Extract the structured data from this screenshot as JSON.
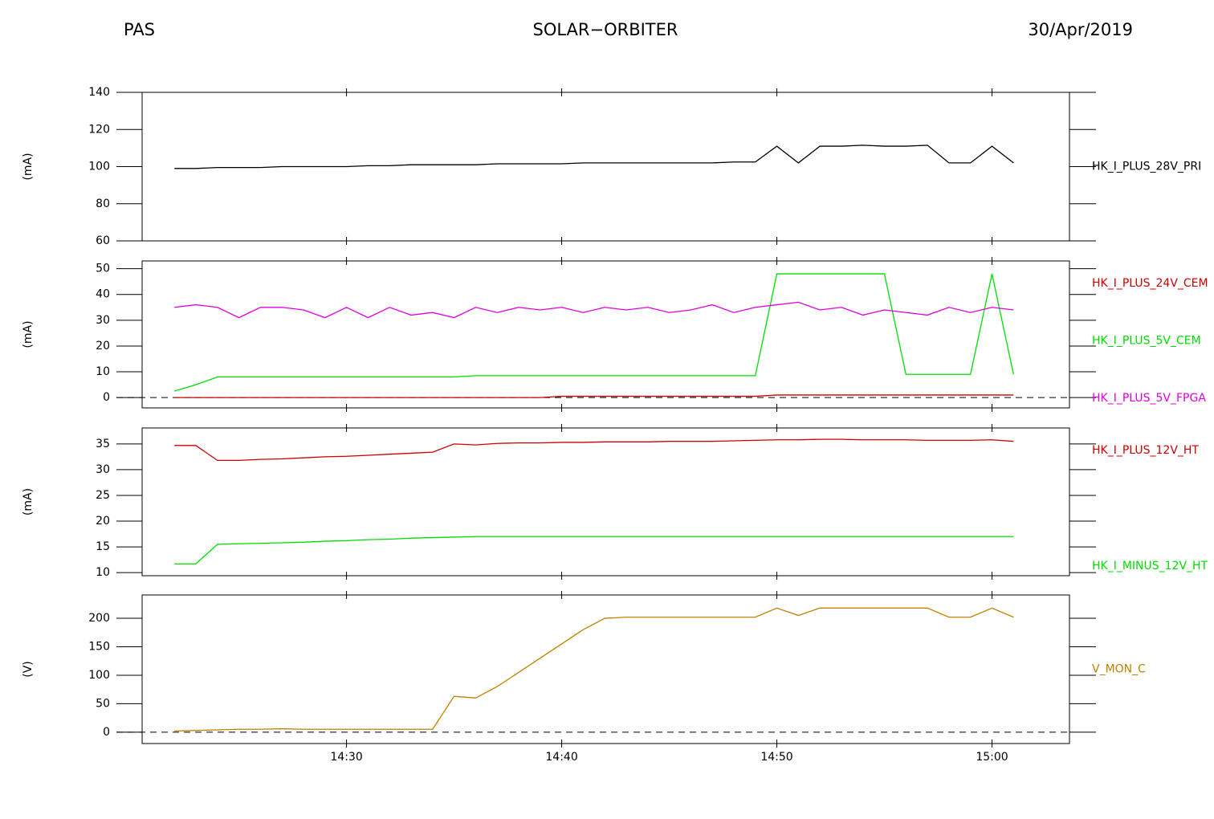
{
  "header": {
    "left": "PAS",
    "center": "SOLAR−ORBITER",
    "right": "30/Apr/2019"
  },
  "chart_data": [
    {
      "type": "line",
      "ylabel": "(mA)",
      "xlim": [
        "14:20:30",
        "15:03:36"
      ],
      "ylim": [
        60,
        140
      ],
      "yticks": [
        60,
        80,
        100,
        120,
        140
      ],
      "x": [
        "14:22",
        "14:23",
        "14:24",
        "14:25",
        "14:26",
        "14:27",
        "14:28",
        "14:29",
        "14:30",
        "14:31",
        "14:32",
        "14:33",
        "14:34",
        "14:35",
        "14:36",
        "14:37",
        "14:38",
        "14:39",
        "14:40",
        "14:41",
        "14:42",
        "14:43",
        "14:44",
        "14:45",
        "14:46",
        "14:47",
        "14:48",
        "14:49",
        "14:50",
        "14:51",
        "14:52",
        "14:53",
        "14:54",
        "14:55",
        "14:56",
        "14:57",
        "14:58",
        "14:59",
        "15:00",
        "15:01"
      ],
      "series": [
        {
          "name": "HK_I_PLUS_28V_PRI",
          "color": "#000000",
          "values": [
            99,
            99,
            99.5,
            99.5,
            99.5,
            100,
            100,
            100,
            100,
            100.5,
            100.5,
            101,
            101,
            101,
            101,
            101.5,
            101.5,
            101.5,
            101.5,
            102,
            102,
            102,
            102,
            102,
            102,
            102,
            102.5,
            102.5,
            111,
            102,
            111,
            111,
            111.5,
            111,
            111,
            111.5,
            102,
            102,
            111,
            102
          ]
        }
      ]
    },
    {
      "type": "line",
      "ylabel": "(mA)",
      "xlim": [
        "14:20:30",
        "15:03:36"
      ],
      "ylim": [
        -4,
        53
      ],
      "yticks": [
        0,
        10,
        20,
        30,
        40,
        50
      ],
      "zero_line": true,
      "x": [
        "14:22",
        "14:23",
        "14:24",
        "14:25",
        "14:26",
        "14:27",
        "14:28",
        "14:29",
        "14:30",
        "14:31",
        "14:32",
        "14:33",
        "14:34",
        "14:35",
        "14:36",
        "14:37",
        "14:38",
        "14:39",
        "14:40",
        "14:41",
        "14:42",
        "14:43",
        "14:44",
        "14:45",
        "14:46",
        "14:47",
        "14:48",
        "14:49",
        "14:50",
        "14:51",
        "14:52",
        "14:53",
        "14:54",
        "14:55",
        "14:56",
        "14:57",
        "14:58",
        "14:59",
        "15:00",
        "15:01"
      ],
      "series": [
        {
          "name": "HK_I_PLUS_24V_CEM",
          "color": "#cc0000",
          "values": [
            0,
            0,
            0,
            0,
            0,
            0,
            0,
            0,
            0,
            0,
            0,
            0,
            0,
            0,
            0,
            0,
            0,
            0,
            0.5,
            0.5,
            0.5,
            0.5,
            0.5,
            0.5,
            0.5,
            0.5,
            0.5,
            0.5,
            1,
            1,
            1,
            1,
            1,
            1,
            1,
            1,
            1,
            1,
            1,
            1
          ]
        },
        {
          "name": "HK_I_PLUS_5V_CEM",
          "color": "#00dd00",
          "values": [
            2.5,
            5,
            8,
            8,
            8,
            8,
            8,
            8,
            8,
            8,
            8,
            8,
            8,
            8,
            8.5,
            8.5,
            8.5,
            8.5,
            8.5,
            8.5,
            8.5,
            8.5,
            8.5,
            8.5,
            8.5,
            8.5,
            8.5,
            8.5,
            48,
            48,
            48,
            48,
            48,
            48,
            9,
            9,
            9,
            9,
            48,
            9
          ]
        },
        {
          "name": "HK_I_PLUS_5V_FPGA",
          "color": "#dd00dd",
          "values": [
            35,
            36,
            35,
            31,
            35,
            35,
            34,
            31,
            35,
            31,
            35,
            32,
            33,
            31,
            35,
            33,
            35,
            34,
            35,
            33,
            35,
            34,
            35,
            33,
            34,
            36,
            33,
            35,
            36,
            37,
            34,
            35,
            32,
            34,
            33,
            32,
            35,
            33,
            35,
            34
          ]
        }
      ]
    },
    {
      "type": "line",
      "ylabel": "(mA)",
      "xlim": [
        "14:20:30",
        "15:03:36"
      ],
      "ylim": [
        9.4,
        38.1
      ],
      "yticks": [
        10,
        15,
        20,
        25,
        30,
        35
      ],
      "x": [
        "14:22",
        "14:23",
        "14:24",
        "14:25",
        "14:26",
        "14:27",
        "14:28",
        "14:29",
        "14:30",
        "14:31",
        "14:32",
        "14:33",
        "14:34",
        "14:35",
        "14:36",
        "14:37",
        "14:38",
        "14:39",
        "14:40",
        "14:41",
        "14:42",
        "14:43",
        "14:44",
        "14:45",
        "14:46",
        "14:47",
        "14:48",
        "14:49",
        "14:50",
        "14:51",
        "14:52",
        "14:53",
        "14:54",
        "14:55",
        "14:56",
        "14:57",
        "14:58",
        "14:59",
        "15:00",
        "15:01"
      ],
      "series": [
        {
          "name": "HK_I_PLUS_12V_HT",
          "color": "#cc0000",
          "values": [
            34.7,
            34.7,
            31.8,
            31.8,
            32,
            32.1,
            32.3,
            32.5,
            32.6,
            32.8,
            33,
            33.2,
            33.4,
            35,
            34.8,
            35.1,
            35.2,
            35.2,
            35.3,
            35.3,
            35.4,
            35.4,
            35.4,
            35.5,
            35.5,
            35.5,
            35.6,
            35.7,
            35.8,
            35.8,
            35.9,
            35.9,
            35.8,
            35.8,
            35.8,
            35.7,
            35.7,
            35.7,
            35.8,
            35.5
          ]
        },
        {
          "name": "HK_I_MINUS_12V_HT",
          "color": "#00dd00",
          "values": [
            11.7,
            11.7,
            15.5,
            15.6,
            15.7,
            15.8,
            15.9,
            16.1,
            16.2,
            16.4,
            16.5,
            16.7,
            16.8,
            16.9,
            17,
            17,
            17,
            17,
            17,
            17,
            17,
            17,
            17,
            17,
            17,
            17,
            17,
            17,
            17,
            17,
            17,
            17,
            17,
            17,
            17,
            17,
            17,
            17,
            17,
            17
          ]
        }
      ]
    },
    {
      "type": "line",
      "ylabel": "(V)",
      "xlim": [
        "14:20:30",
        "15:03:36"
      ],
      "ylim": [
        -20,
        241
      ],
      "yticks": [
        0,
        50,
        100,
        150,
        200
      ],
      "zero_line": true,
      "xticks": [
        "14:30",
        "14:40",
        "14:50",
        "15:00"
      ],
      "x": [
        "14:22",
        "14:23",
        "14:24",
        "14:25",
        "14:26",
        "14:27",
        "14:28",
        "14:29",
        "14:30",
        "14:31",
        "14:32",
        "14:33",
        "14:34",
        "14:35",
        "14:36",
        "14:37",
        "14:38",
        "14:39",
        "14:40",
        "14:41",
        "14:42",
        "14:43",
        "14:44",
        "14:45",
        "14:46",
        "14:47",
        "14:48",
        "14:49",
        "14:50",
        "14:51",
        "14:52",
        "14:53",
        "14:54",
        "14:55",
        "14:56",
        "14:57",
        "14:58",
        "14:59",
        "15:00",
        "15:01"
      ],
      "series": [
        {
          "name": "V_MON_C",
          "color": "#c08000",
          "values": [
            2,
            3,
            4,
            5,
            5,
            6,
            5,
            5,
            5,
            5,
            5,
            5,
            5,
            63,
            60,
            80,
            105,
            130,
            155,
            180,
            200,
            202,
            202,
            202,
            202,
            202,
            202,
            202,
            218,
            205,
            218,
            218,
            218,
            218,
            218,
            218,
            202,
            202,
            218,
            202
          ]
        }
      ]
    }
  ]
}
